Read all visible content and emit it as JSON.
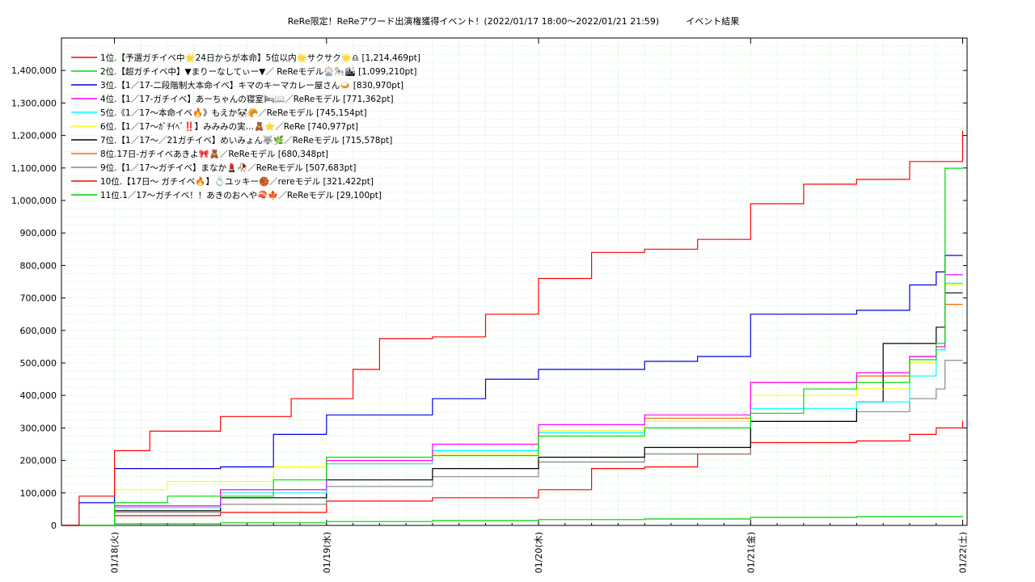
{
  "chart_data": {
    "type": "line",
    "title": "ReRe限定！ReReアワード出演権獲得イベント！(2022/01/17 18:00〜2022/01/21 21:59)　　　イベント結果",
    "xlabel": "",
    "ylabel": "",
    "ylim": [
      0,
      1500000
    ],
    "yticks": [
      0,
      100000,
      200000,
      300000,
      400000,
      500000,
      600000,
      700000,
      800000,
      900000,
      1000000,
      1100000,
      1200000,
      1300000,
      1400000
    ],
    "ytick_labels": [
      "0",
      "100,000",
      "200,000",
      "300,000",
      "400,000",
      "500,000",
      "600,000",
      "700,000",
      "800,000",
      "900,000",
      "1,000,000",
      "1,100,000",
      "1,200,000",
      "1,300,000",
      "1,400,000"
    ],
    "xlim": [
      "2022-01-17 18:00",
      "2022-01-22 00:30"
    ],
    "xticks": [
      "2022-01-18",
      "2022-01-19",
      "2022-01-20",
      "2022-01-21",
      "2022-01-22"
    ],
    "xtick_labels": [
      "01/18(火)",
      "01/19(水)",
      "01/20(木)",
      "01/21(金)",
      "01/22(土)"
    ],
    "grid": true,
    "legend_position": "top-left",
    "series": [
      {
        "name": "1位.【予選ガチイベ中🌟24日からが本命】5位以内🌟サクサク🌟♎ [1,214,469pt]",
        "color": "#ff0000",
        "points": [
          [
            "2022-01-17 18:00",
            0
          ],
          [
            "2022-01-17 20:00",
            90000
          ],
          [
            "2022-01-18 00:00",
            230000
          ],
          [
            "2022-01-18 04:00",
            290000
          ],
          [
            "2022-01-18 12:00",
            335000
          ],
          [
            "2022-01-18 20:00",
            390000
          ],
          [
            "2022-01-19 03:00",
            480000
          ],
          [
            "2022-01-19 06:00",
            575000
          ],
          [
            "2022-01-19 12:00",
            580000
          ],
          [
            "2022-01-19 18:00",
            650000
          ],
          [
            "2022-01-20 00:00",
            760000
          ],
          [
            "2022-01-20 06:00",
            840000
          ],
          [
            "2022-01-20 12:00",
            850000
          ],
          [
            "2022-01-20 18:00",
            880000
          ],
          [
            "2022-01-21 00:00",
            990000
          ],
          [
            "2022-01-21 06:00",
            1050000
          ],
          [
            "2022-01-21 12:00",
            1065000
          ],
          [
            "2022-01-21 18:00",
            1120000
          ],
          [
            "2022-01-22 00:00",
            1214469
          ]
        ]
      },
      {
        "name": "2位.【超ガチイベ中】▼まりーなしてぃー▼／ ReReモデル🎡🎠🏙 [1,099,210pt]",
        "color": "#00dd00",
        "points": [
          [
            "2022-01-17 18:00",
            0
          ],
          [
            "2022-01-18 00:00",
            70000
          ],
          [
            "2022-01-18 06:00",
            90000
          ],
          [
            "2022-01-18 18:00",
            140000
          ],
          [
            "2022-01-19 00:00",
            210000
          ],
          [
            "2022-01-19 12:00",
            215000
          ],
          [
            "2022-01-20 00:00",
            275000
          ],
          [
            "2022-01-20 12:00",
            300000
          ],
          [
            "2022-01-21 00:00",
            345000
          ],
          [
            "2022-01-21 06:00",
            420000
          ],
          [
            "2022-01-21 12:00",
            440000
          ],
          [
            "2022-01-21 18:00",
            510000
          ],
          [
            "2022-01-21 21:00",
            560000
          ],
          [
            "2022-01-21 22:00",
            1099210
          ],
          [
            "2022-01-22 00:00",
            1099210
          ]
        ]
      },
      {
        "name": "3位.【1／17-二段階制大本命イベ】キマのキーマカレー屋さん🍛 [830,970pt]",
        "color": "#0000dd",
        "points": [
          [
            "2022-01-17 18:00",
            0
          ],
          [
            "2022-01-17 20:00",
            70000
          ],
          [
            "2022-01-18 00:00",
            175000
          ],
          [
            "2022-01-18 12:00",
            180000
          ],
          [
            "2022-01-18 18:00",
            280000
          ],
          [
            "2022-01-19 00:00",
            340000
          ],
          [
            "2022-01-19 12:00",
            390000
          ],
          [
            "2022-01-19 18:00",
            450000
          ],
          [
            "2022-01-20 00:00",
            480000
          ],
          [
            "2022-01-20 12:00",
            505000
          ],
          [
            "2022-01-20 18:00",
            520000
          ],
          [
            "2022-01-21 00:00",
            650000
          ],
          [
            "2022-01-21 12:00",
            662000
          ],
          [
            "2022-01-21 18:00",
            740000
          ],
          [
            "2022-01-21 21:00",
            780000
          ],
          [
            "2022-01-21 22:00",
            830970
          ],
          [
            "2022-01-22 00:00",
            830970
          ]
        ]
      },
      {
        "name": "4位.【1／17-ガチイベ】あーちゃんの寝室🛏📖／ReReモデル [771,362pt]",
        "color": "#ff00ff",
        "points": [
          [
            "2022-01-17 18:00",
            0
          ],
          [
            "2022-01-18 00:00",
            60000
          ],
          [
            "2022-01-18 12:00",
            110000
          ],
          [
            "2022-01-19 00:00",
            200000
          ],
          [
            "2022-01-19 12:00",
            250000
          ],
          [
            "2022-01-20 00:00",
            310000
          ],
          [
            "2022-01-20 12:00",
            340000
          ],
          [
            "2022-01-21 00:00",
            440000
          ],
          [
            "2022-01-21 12:00",
            470000
          ],
          [
            "2022-01-21 18:00",
            520000
          ],
          [
            "2022-01-21 21:00",
            550000
          ],
          [
            "2022-01-21 22:00",
            771362
          ],
          [
            "2022-01-22 00:00",
            771362
          ]
        ]
      },
      {
        "name": "5位.《1／17〜本命イベ🔥》もえか🐼🥐／ReReモデル [745,154pt]",
        "color": "#00ffff",
        "points": [
          [
            "2022-01-17 18:00",
            0
          ],
          [
            "2022-01-18 00:00",
            55000
          ],
          [
            "2022-01-18 12:00",
            100000
          ],
          [
            "2022-01-19 00:00",
            190000
          ],
          [
            "2022-01-19 12:00",
            230000
          ],
          [
            "2022-01-20 00:00",
            285000
          ],
          [
            "2022-01-20 12:00",
            300000
          ],
          [
            "2022-01-21 00:00",
            360000
          ],
          [
            "2022-01-21 12:00",
            380000
          ],
          [
            "2022-01-21 18:00",
            460000
          ],
          [
            "2022-01-21 21:00",
            540000
          ],
          [
            "2022-01-21 22:00",
            745154
          ],
          [
            "2022-01-22 00:00",
            745154
          ]
        ]
      },
      {
        "name": "6位.【1／17〜ｶﾞﾁｲﾍﾞ‼️】みみみの実…🧸⭐️／ReRe [740,977pt]",
        "color": "#ffff00",
        "points": [
          [
            "2022-01-17 18:00",
            0
          ],
          [
            "2022-01-18 00:00",
            110000
          ],
          [
            "2022-01-18 06:00",
            135000
          ],
          [
            "2022-01-18 18:00",
            180000
          ],
          [
            "2022-01-19 00:00",
            210000
          ],
          [
            "2022-01-19 12:00",
            220000
          ],
          [
            "2022-01-20 00:00",
            290000
          ],
          [
            "2022-01-20 12:00",
            320000
          ],
          [
            "2022-01-21 00:00",
            400000
          ],
          [
            "2022-01-21 12:00",
            420000
          ],
          [
            "2022-01-21 18:00",
            500000
          ],
          [
            "2022-01-21 21:00",
            540000
          ],
          [
            "2022-01-21 22:00",
            740977
          ],
          [
            "2022-01-22 00:00",
            740977
          ]
        ]
      },
      {
        "name": "7位.【1／17〜／21ガチイベ】めいみょん🐺🌿／ReReモデル [715,578pt]",
        "color": "#000000",
        "points": [
          [
            "2022-01-17 18:00",
            0
          ],
          [
            "2022-01-18 00:00",
            45000
          ],
          [
            "2022-01-18 12:00",
            85000
          ],
          [
            "2022-01-19 00:00",
            140000
          ],
          [
            "2022-01-19 12:00",
            175000
          ],
          [
            "2022-01-20 00:00",
            210000
          ],
          [
            "2022-01-20 12:00",
            240000
          ],
          [
            "2022-01-21 00:00",
            320000
          ],
          [
            "2022-01-21 12:00",
            380000
          ],
          [
            "2022-01-21 15:00",
            560000
          ],
          [
            "2022-01-21 21:00",
            610000
          ],
          [
            "2022-01-21 22:00",
            715578
          ],
          [
            "2022-01-22 00:00",
            715578
          ]
        ]
      },
      {
        "name": "8位.17日-ガチイベあきよ🎀🧸／ReReモデル [680,348pt]",
        "color": "#ff6600",
        "points": [
          [
            "2022-01-17 18:00",
            0
          ],
          [
            "2022-01-18 00:00",
            60000
          ],
          [
            "2022-01-18 12:00",
            110000
          ],
          [
            "2022-01-19 00:00",
            190000
          ],
          [
            "2022-01-19 12:00",
            230000
          ],
          [
            "2022-01-20 00:00",
            290000
          ],
          [
            "2022-01-20 12:00",
            330000
          ],
          [
            "2022-01-21 00:00",
            440000
          ],
          [
            "2022-01-21 12:00",
            460000
          ],
          [
            "2022-01-21 18:00",
            520000
          ],
          [
            "2022-01-21 21:00",
            540000
          ],
          [
            "2022-01-21 22:00",
            680348
          ],
          [
            "2022-01-22 00:00",
            680348
          ]
        ]
      },
      {
        "name": "9位.【1／17〜ガチイベ】まなか💄🥀／ReReモデル [507,683pt]",
        "color": "#888888",
        "points": [
          [
            "2022-01-17 18:00",
            0
          ],
          [
            "2022-01-18 00:00",
            40000
          ],
          [
            "2022-01-18 12:00",
            65000
          ],
          [
            "2022-01-19 00:00",
            120000
          ],
          [
            "2022-01-19 12:00",
            150000
          ],
          [
            "2022-01-20 00:00",
            195000
          ],
          [
            "2022-01-20 12:00",
            220000
          ],
          [
            "2022-01-21 00:00",
            320000
          ],
          [
            "2022-01-21 12:00",
            350000
          ],
          [
            "2022-01-21 18:00",
            390000
          ],
          [
            "2022-01-21 21:00",
            420000
          ],
          [
            "2022-01-21 22:00",
            507683
          ],
          [
            "2022-01-22 00:00",
            507683
          ]
        ]
      },
      {
        "name": "10位.【17日〜 ガチイベ🔥】💍ユッキー🏀／rereモデル [321,422pt]",
        "color": "#ff0000",
        "points": [
          [
            "2022-01-17 18:00",
            0
          ],
          [
            "2022-01-18 00:00",
            30000
          ],
          [
            "2022-01-18 12:00",
            40000
          ],
          [
            "2022-01-19 00:00",
            75000
          ],
          [
            "2022-01-19 12:00",
            85000
          ],
          [
            "2022-01-20 00:00",
            110000
          ],
          [
            "2022-01-20 06:00",
            175000
          ],
          [
            "2022-01-20 12:00",
            180000
          ],
          [
            "2022-01-20 18:00",
            220000
          ],
          [
            "2022-01-21 00:00",
            255000
          ],
          [
            "2022-01-21 12:00",
            260000
          ],
          [
            "2022-01-21 18:00",
            280000
          ],
          [
            "2022-01-21 21:00",
            300000
          ],
          [
            "2022-01-22 00:00",
            321422
          ]
        ]
      },
      {
        "name": "11位.1／17〜ガチイベ！！あきのおへや🍣🍁／ReReモデル [29,100pt]",
        "color": "#00cc00",
        "points": [
          [
            "2022-01-17 18:00",
            0
          ],
          [
            "2022-01-18 00:00",
            5000
          ],
          [
            "2022-01-18 12:00",
            8000
          ],
          [
            "2022-01-19 00:00",
            12000
          ],
          [
            "2022-01-19 12:00",
            15000
          ],
          [
            "2022-01-20 00:00",
            18000
          ],
          [
            "2022-01-20 12:00",
            20000
          ],
          [
            "2022-01-21 00:00",
            25000
          ],
          [
            "2022-01-21 12:00",
            27000
          ],
          [
            "2022-01-22 00:00",
            29100
          ]
        ]
      }
    ]
  }
}
